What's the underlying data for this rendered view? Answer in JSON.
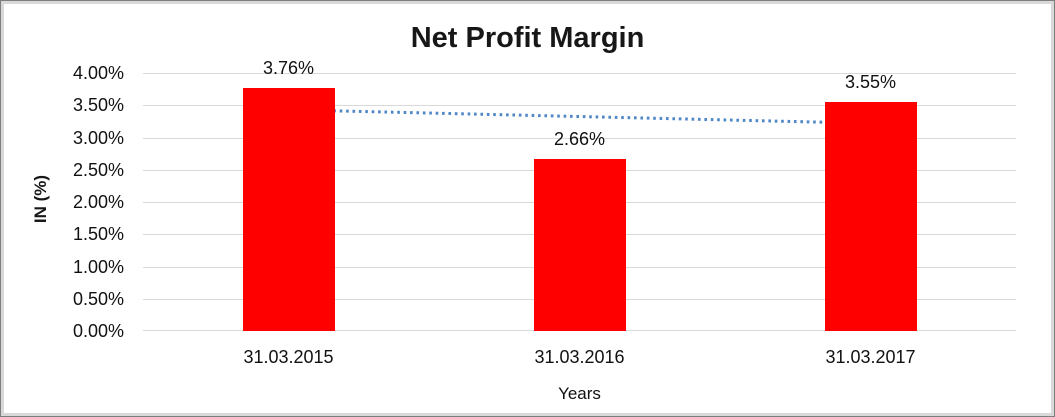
{
  "chart_data": {
    "type": "bar",
    "title": "Net Profit Margin",
    "xlabel": "Years",
    "ylabel": "IN (%)",
    "categories": [
      "31.03.2015",
      "31.03.2016",
      "31.03.2017"
    ],
    "values": [
      3.76,
      2.66,
      3.55
    ],
    "data_labels": [
      "3.76%",
      "2.66%",
      "3.55%"
    ],
    "y_tick_labels": [
      "0.00%",
      "0.50%",
      "1.00%",
      "1.50%",
      "2.00%",
      "2.50%",
      "3.00%",
      "3.50%",
      "4.00%"
    ],
    "ylim": [
      0,
      4
    ],
    "grid": true,
    "legend": "none",
    "bar_color": "#ff0000",
    "gridline_color": "#d9d9d9",
    "trendline": {
      "type": "linear",
      "style": "dotted",
      "color": "#4e86c6",
      "start_value": 3.43,
      "end_value": 3.22
    }
  }
}
